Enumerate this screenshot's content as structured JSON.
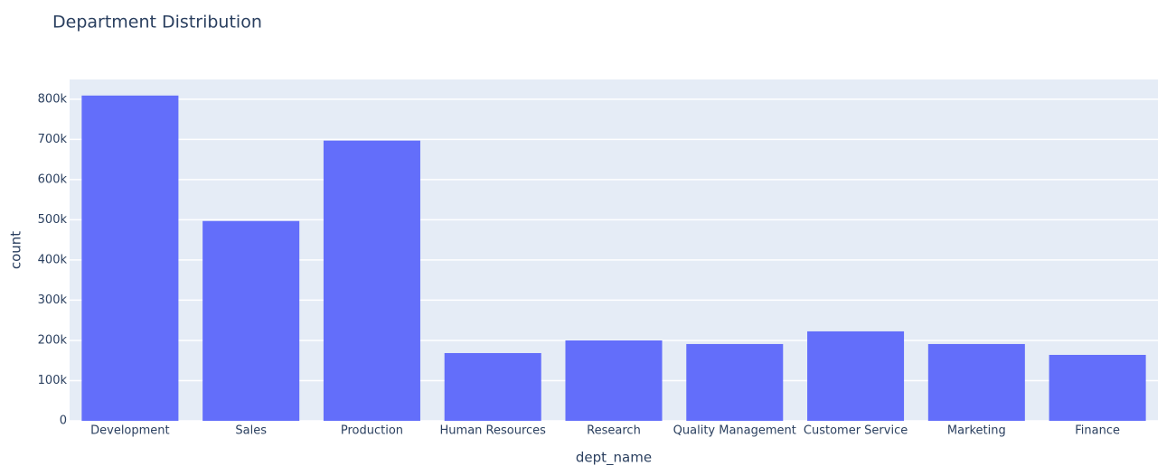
{
  "chart_data": {
    "type": "bar",
    "title": "Department Distribution",
    "x_label": "dept_name",
    "y_label": "count",
    "categories": [
      "Development",
      "Sales",
      "Production",
      "Human Resources",
      "Research",
      "Quality Management",
      "Customer Service",
      "Marketing",
      "Finance"
    ],
    "values": [
      809000,
      497000,
      697000,
      168500,
      200000,
      191000,
      222500,
      191000,
      164000
    ],
    "color": "#636efa",
    "ylim": [
      0,
      849000
    ],
    "yticks": [
      0,
      {
        "value": 100000,
        "label": "100k"
      },
      {
        "value": 200000,
        "label": "200k"
      },
      {
        "value": 300000,
        "label": "300k"
      },
      {
        "value": 400000,
        "label": "400k"
      },
      {
        "value": 500000,
        "label": "500k"
      },
      {
        "value": 600000,
        "label": "600k"
      },
      {
        "value": 700000,
        "label": "700k"
      },
      {
        "value": 800000,
        "label": "800k"
      }
    ],
    "grid": true
  }
}
